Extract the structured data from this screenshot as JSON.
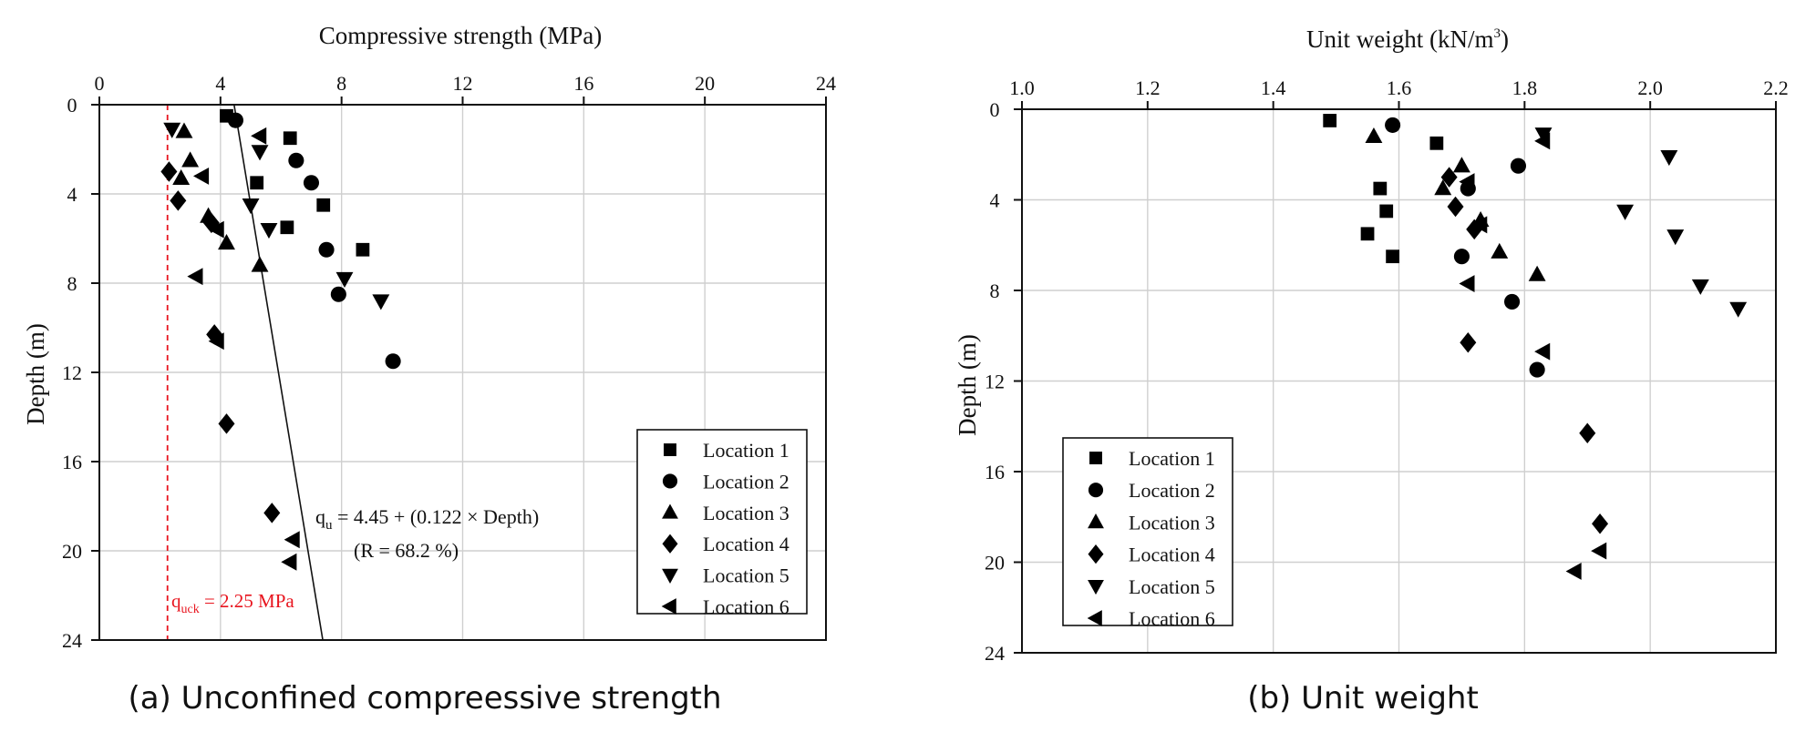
{
  "captions": {
    "a": "(a) Unconfined compreessive strength",
    "b": "(b) Unit weight"
  },
  "chart_data": [
    {
      "type": "scatter",
      "title": "",
      "xlabel": "Compressive strength (MPa)",
      "ylabel": "Depth (m)",
      "xlim": [
        0,
        24
      ],
      "ylim": [
        0,
        24
      ],
      "y_inverted": true,
      "x_axis_position": "top",
      "grid": true,
      "x_ticks": [
        0,
        4,
        8,
        12,
        16,
        20,
        24
      ],
      "y_ticks": [
        0,
        4,
        8,
        12,
        16,
        20,
        24
      ],
      "legend_position": "bottom-right",
      "series": [
        {
          "name": "Location 1",
          "marker": "square",
          "points": [
            [
              4.2,
              0.5
            ],
            [
              6.3,
              1.5
            ],
            [
              5.2,
              3.5
            ],
            [
              7.4,
              4.5
            ],
            [
              6.2,
              5.5
            ],
            [
              8.7,
              6.5
            ]
          ]
        },
        {
          "name": "Location 2",
          "marker": "circle",
          "points": [
            [
              4.5,
              0.7
            ],
            [
              6.5,
              2.5
            ],
            [
              7.0,
              3.5
            ],
            [
              7.5,
              6.5
            ],
            [
              7.9,
              8.5
            ],
            [
              9.7,
              11.5
            ]
          ]
        },
        {
          "name": "Location 3",
          "marker": "triangle-up",
          "points": [
            [
              2.8,
              1.2
            ],
            [
              3.0,
              2.5
            ],
            [
              2.7,
              3.3
            ],
            [
              3.6,
              5.0
            ],
            [
              4.2,
              6.2
            ],
            [
              5.3,
              7.2
            ]
          ]
        },
        {
          "name": "Location 4",
          "marker": "diamond",
          "points": [
            [
              2.3,
              3.0
            ],
            [
              2.6,
              4.3
            ],
            [
              3.7,
              5.3
            ],
            [
              3.8,
              10.3
            ],
            [
              4.2,
              14.3
            ],
            [
              5.7,
              18.3
            ]
          ]
        },
        {
          "name": "Location 5",
          "marker": "triangle-down",
          "points": [
            [
              2.4,
              1.1
            ],
            [
              5.3,
              2.1
            ],
            [
              5.0,
              4.5
            ],
            [
              5.6,
              5.6
            ],
            [
              8.1,
              7.8
            ],
            [
              9.3,
              8.8
            ]
          ]
        },
        {
          "name": "Location 6",
          "marker": "triangle-left",
          "points": [
            [
              5.3,
              1.4
            ],
            [
              3.4,
              3.2
            ],
            [
              3.9,
              5.6
            ],
            [
              3.2,
              7.7
            ],
            [
              3.9,
              10.6
            ],
            [
              6.4,
              19.5
            ],
            [
              6.3,
              20.5
            ]
          ]
        }
      ],
      "fit_line": {
        "from": [
          4.45,
          0
        ],
        "to": [
          7.38,
          24
        ]
      },
      "fit_label_parts": {
        "symbol": "q",
        "subscript": "u",
        "equation": " = 4.45 + (0.122 × Depth)"
      },
      "fit_r_label": "(R = 68.2 %)",
      "threshold_line": {
        "x": 2.25,
        "color": "#e8141e",
        "style": "dashed"
      },
      "threshold_label_parts": {
        "symbol": "q",
        "subscript": "uck",
        "text": " = 2.25 MPa"
      }
    },
    {
      "type": "scatter",
      "title": "",
      "xlabel_parts": {
        "text": "Unit weight (kN/m",
        "superscript": "3",
        "close": ")"
      },
      "ylabel": "Depth (m)",
      "xlim": [
        1.0,
        2.2
      ],
      "ylim": [
        0,
        24
      ],
      "y_inverted": true,
      "x_axis_position": "top",
      "grid": true,
      "x_ticks": [
        "1.0",
        "1.2",
        "1.4",
        "1.6",
        "1.8",
        "2.0",
        "2.2"
      ],
      "y_ticks": [
        0,
        4,
        8,
        12,
        16,
        20,
        24
      ],
      "legend_position": "bottom-left",
      "series": [
        {
          "name": "Location 1",
          "marker": "square",
          "points": [
            [
              1.49,
              0.5
            ],
            [
              1.66,
              1.5
            ],
            [
              1.57,
              3.5
            ],
            [
              1.58,
              4.5
            ],
            [
              1.55,
              5.5
            ],
            [
              1.59,
              6.5
            ]
          ]
        },
        {
          "name": "Location 2",
          "marker": "circle",
          "points": [
            [
              1.59,
              0.7
            ],
            [
              1.79,
              2.5
            ],
            [
              1.71,
              3.5
            ],
            [
              1.7,
              6.5
            ],
            [
              1.78,
              8.5
            ],
            [
              1.82,
              11.5
            ]
          ]
        },
        {
          "name": "Location 3",
          "marker": "triangle-up",
          "points": [
            [
              1.56,
              1.2
            ],
            [
              1.7,
              2.5
            ],
            [
              1.67,
              3.5
            ],
            [
              1.73,
              4.9
            ],
            [
              1.76,
              6.3
            ],
            [
              1.82,
              7.3
            ]
          ]
        },
        {
          "name": "Location 4",
          "marker": "diamond",
          "points": [
            [
              1.68,
              3.0
            ],
            [
              1.69,
              4.3
            ],
            [
              1.72,
              5.3
            ],
            [
              1.71,
              10.3
            ],
            [
              1.9,
              14.3
            ],
            [
              1.92,
              18.3
            ]
          ]
        },
        {
          "name": "Location 5",
          "marker": "triangle-down",
          "points": [
            [
              1.83,
              1.1
            ],
            [
              2.03,
              2.1
            ],
            [
              1.96,
              4.5
            ],
            [
              2.04,
              5.6
            ],
            [
              2.08,
              7.8
            ],
            [
              2.14,
              8.8
            ]
          ]
        },
        {
          "name": "Location 6",
          "marker": "triangle-left",
          "points": [
            [
              1.83,
              1.4
            ],
            [
              1.71,
              3.2
            ],
            [
              1.73,
              5.1
            ],
            [
              1.71,
              7.7
            ],
            [
              1.83,
              10.7
            ],
            [
              1.92,
              19.5
            ],
            [
              1.88,
              20.4
            ]
          ]
        }
      ]
    }
  ]
}
